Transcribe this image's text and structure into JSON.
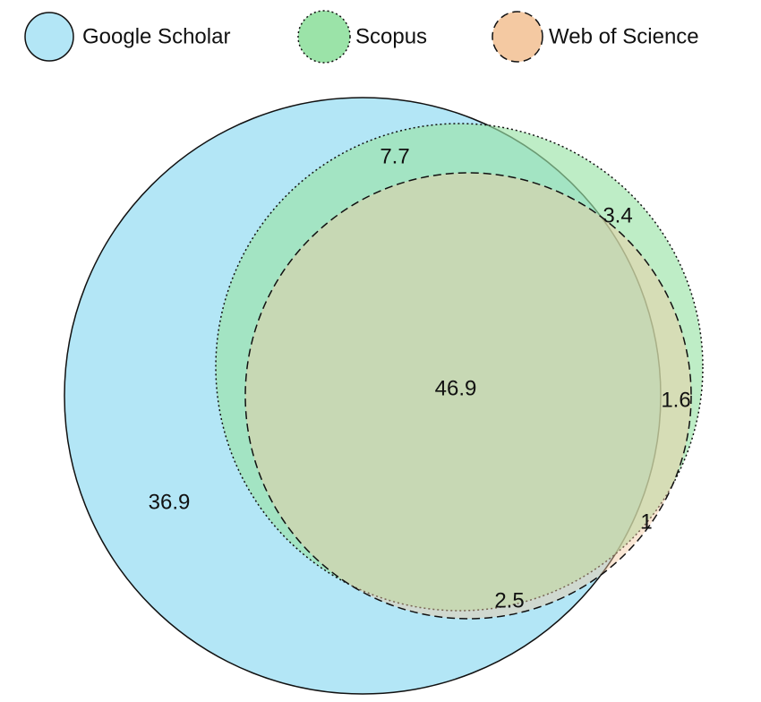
{
  "chart_data": {
    "type": "venn",
    "sets": [
      {
        "name": "Google Scholar",
        "color": "#b3e6f6",
        "line_style": "solid"
      },
      {
        "name": "Scopus",
        "color": "#9be3a8",
        "line_style": "dotted"
      },
      {
        "name": "Web of Science",
        "color": "#f4c9a2",
        "line_style": "dashed"
      }
    ],
    "regions": [
      {
        "sets": [
          "Google Scholar"
        ],
        "value": 36.9
      },
      {
        "sets": [
          "Google Scholar",
          "Scopus"
        ],
        "value": 7.7
      },
      {
        "sets": [
          "Google Scholar",
          "Scopus",
          "Web of Science"
        ],
        "value": 46.9
      },
      {
        "sets": [
          "Scopus"
        ],
        "value": 3.4
      },
      {
        "sets": [
          "Scopus",
          "Web of Science"
        ],
        "value": 1.6
      },
      {
        "sets": [
          "Web of Science"
        ],
        "value": 1
      },
      {
        "sets": [
          "Google Scholar",
          "Web of Science"
        ],
        "value": 2.5
      }
    ]
  }
}
